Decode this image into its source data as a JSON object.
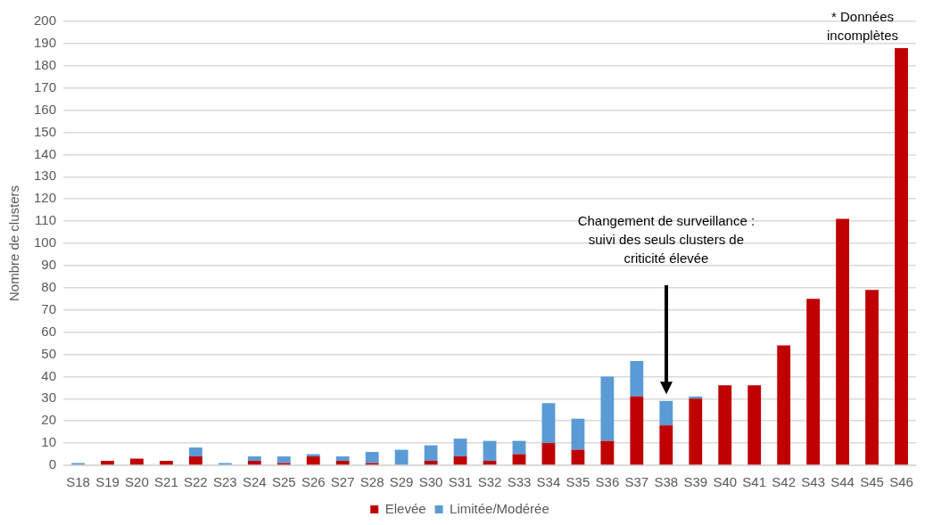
{
  "chart_data": {
    "type": "bar",
    "stacked": true,
    "ylabel": "Nombre de clusters",
    "categories": [
      "S18",
      "S19",
      "S20",
      "S21",
      "S22",
      "S23",
      "S24",
      "S25",
      "S26",
      "S27",
      "S28",
      "S29",
      "S30",
      "S31",
      "S32",
      "S33",
      "S34",
      "S35",
      "S36",
      "S37",
      "S38",
      "S39",
      "S40",
      "S41",
      "S42",
      "S43",
      "S44",
      "S45",
      "S46"
    ],
    "series": [
      {
        "name": "Elevée",
        "color": "#c00000",
        "values": [
          0,
          2,
          3,
          2,
          4,
          0,
          2,
          1,
          4,
          2,
          1,
          0,
          2,
          4,
          2,
          5,
          10,
          7,
          11,
          31,
          18,
          30,
          36,
          36,
          54,
          75,
          111,
          79,
          188
        ]
      },
      {
        "name": "Limitée/Modérée",
        "color": "#5b9bd5",
        "values": [
          1,
          0,
          0,
          0,
          4,
          1,
          2,
          3,
          1,
          2,
          5,
          7,
          7,
          8,
          9,
          6,
          18,
          14,
          29,
          16,
          11,
          1,
          0,
          0,
          0,
          0,
          0,
          0,
          0
        ]
      }
    ],
    "ylim": [
      0,
      200
    ],
    "yticks": [
      0,
      10,
      20,
      30,
      40,
      50,
      60,
      70,
      80,
      90,
      100,
      110,
      120,
      130,
      140,
      150,
      160,
      170,
      180,
      190,
      200
    ],
    "grid": "y",
    "legend": "bottom",
    "annotations": [
      "Changement de surveillance :\nsuivi des seuls clusters de\ncriticité élevée",
      {
        "text": "* Données\nincomplètes",
        "x": "S46",
        "y": 188
      }
    ]
  }
}
